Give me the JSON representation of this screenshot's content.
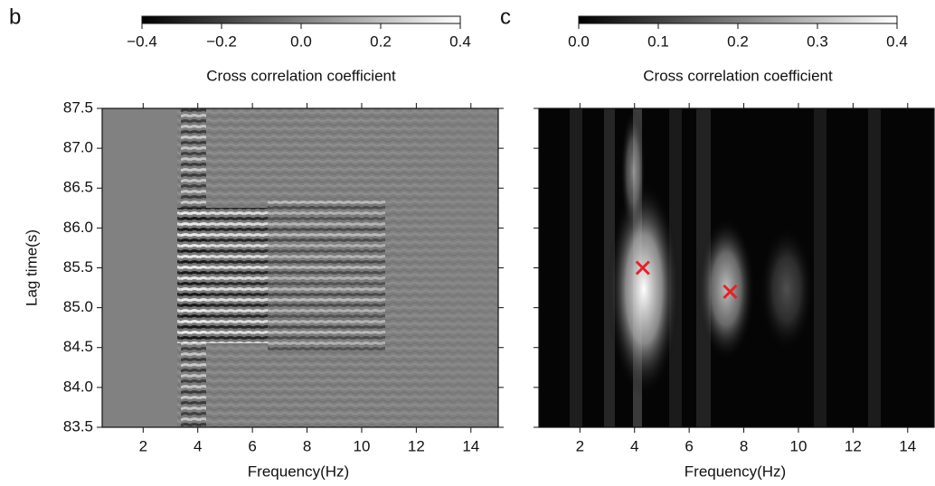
{
  "chart_data": [
    {
      "type": "heatmap",
      "panel_label": "b",
      "colorbar": {
        "label": "Cross correlation coefficient",
        "lim": [
          -0.4,
          0.4
        ],
        "ticks": [
          {
            "value": -0.4,
            "label": "−0.4"
          },
          {
            "value": -0.2,
            "label": "−0.2"
          },
          {
            "value": 0,
            "label": "0.0"
          },
          0.2,
          0.4
        ],
        "colors": [
          "#000000",
          "#ffffff"
        ]
      },
      "xlabel": "Frequency(Hz)",
      "ylabel": "Lag time(s)",
      "xlim": [
        0.5,
        15
      ],
      "ylim": [
        83.5,
        87.5
      ],
      "xticks": [
        2,
        4,
        6,
        8,
        10,
        12,
        14
      ],
      "yticks": [
        83.5,
        {
          "value": 84,
          "label": "84.0"
        },
        84.5,
        {
          "value": 85,
          "label": "85.0"
        },
        85.5,
        {
          "value": 86,
          "label": "86.0"
        },
        86.5,
        {
          "value": 87,
          "label": "87.0"
        },
        87.5
      ],
      "show_ytick_labels": true
    },
    {
      "type": "heatmap",
      "panel_label": "c",
      "colorbar": {
        "label": "Cross correlation coefficient",
        "lim": [
          0,
          0.4
        ],
        "ticks": [
          {
            "value": 0,
            "label": "0.0"
          },
          0.1,
          0.2,
          0.3,
          0.4
        ],
        "colors": [
          "#000000",
          "#ffffff"
        ]
      },
      "xlabel": "Frequency(Hz)",
      "xlim": [
        0.5,
        15
      ],
      "ylim": [
        83.5,
        87.5
      ],
      "xticks": [
        2,
        4,
        6,
        8,
        10,
        12,
        14
      ],
      "yticks": [
        83.5,
        84,
        84.5,
        85,
        85.5,
        86,
        86.5,
        87,
        87.5
      ],
      "show_ytick_labels": false,
      "markers": {
        "x": [
          4.3,
          7.5
        ],
        "y": [
          85.5,
          85.2
        ],
        "color": "#e8202a"
      }
    }
  ]
}
